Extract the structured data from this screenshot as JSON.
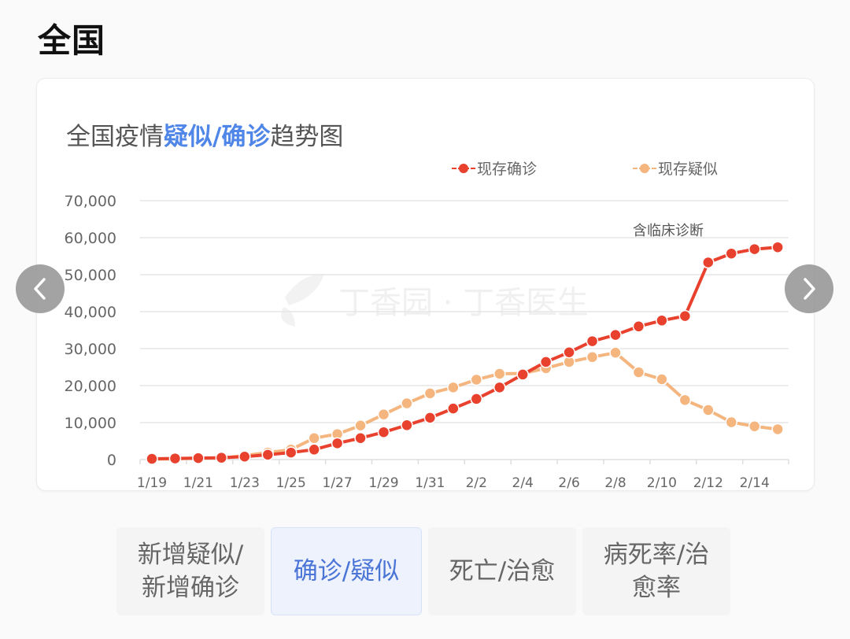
{
  "header": {
    "title": "全国"
  },
  "card": {
    "title_prefix": "全国疫情",
    "title_highlight": "疑似/确诊",
    "title_suffix": "趋势图",
    "annotation": "含临床诊断",
    "watermark": "丁香园 · 丁香医生"
  },
  "legend": [
    {
      "label": "现存确诊",
      "color": "#e8412e"
    },
    {
      "label": "现存疑似",
      "color": "#f4b57f"
    }
  ],
  "nav": {
    "prev": "previous-chart",
    "next": "next-chart"
  },
  "tabs": [
    {
      "label": "新增疑似/新增确诊",
      "line1": "新增疑似/",
      "line2": "新增确诊",
      "active": false
    },
    {
      "label": "确诊/疑似",
      "line1": "确诊/疑似",
      "line2": "",
      "active": true
    },
    {
      "label": "死亡/治愈",
      "line1": "死亡/治愈",
      "line2": "",
      "active": false
    },
    {
      "label": "病死率/治愈率",
      "line1": "病死率/治",
      "line2": "愈率",
      "active": false
    }
  ],
  "chart_data": {
    "type": "line",
    "title": "全国疫情疑似/确诊趋势图",
    "xlabel": "",
    "ylabel": "",
    "ylim": [
      0,
      70000
    ],
    "yticks": [
      0,
      10000,
      20000,
      30000,
      40000,
      50000,
      60000,
      70000
    ],
    "ytick_labels": [
      "0",
      "10,000",
      "20,000",
      "30,000",
      "40,000",
      "50,000",
      "60,000",
      "70,000"
    ],
    "xtick_labels": [
      "1/19",
      "1/21",
      "1/23",
      "1/25",
      "1/27",
      "1/29",
      "1/31",
      "2/2",
      "2/4",
      "2/6",
      "2/8",
      "2/10",
      "2/12",
      "2/14"
    ],
    "grid": true,
    "legend_position": "top",
    "annotations": [
      {
        "text": "含临床诊断",
        "x": "2/12"
      }
    ],
    "x": [
      "1/19",
      "1/20",
      "1/21",
      "1/22",
      "1/23",
      "1/24",
      "1/25",
      "1/26",
      "1/27",
      "1/28",
      "1/29",
      "1/30",
      "1/31",
      "2/1",
      "2/2",
      "2/3",
      "2/4",
      "2/5",
      "2/6",
      "2/7",
      "2/8",
      "2/9",
      "2/10",
      "2/11",
      "2/12",
      "2/13",
      "2/14",
      "2/15"
    ],
    "series": [
      {
        "name": "现存确诊",
        "color": "#e8412e",
        "values": [
          200,
          300,
          400,
          500,
          800,
          1300,
          1900,
          2700,
          4400,
          5800,
          7400,
          9300,
          11300,
          13800,
          16400,
          19500,
          23000,
          26400,
          29000,
          32000,
          33700,
          36000,
          37600,
          38800,
          53300,
          55700,
          56900,
          57400
        ]
      },
      {
        "name": "现存疑似",
        "color": "#f4b57f",
        "values": [
          100,
          200,
          400,
          400,
          1100,
          1900,
          2700,
          5800,
          6900,
          9200,
          12200,
          15200,
          17900,
          19500,
          21600,
          23200,
          23300,
          24700,
          26400,
          27700,
          28900,
          23600,
          21700,
          16100,
          13400,
          10100,
          9000,
          8200
        ]
      }
    ]
  }
}
